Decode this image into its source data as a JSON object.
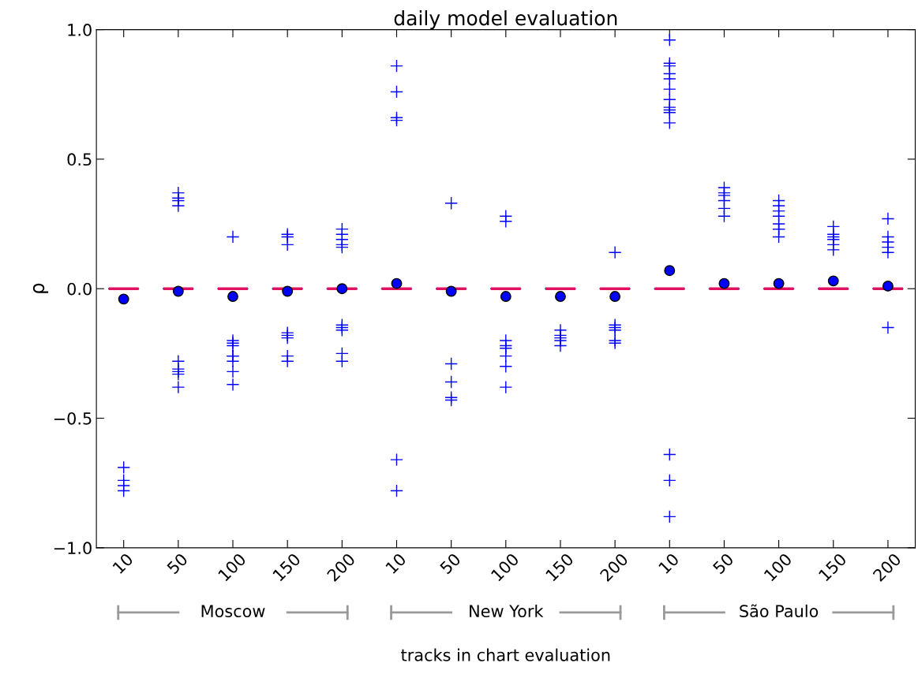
{
  "chart_data": {
    "type": "box",
    "title": "daily model evaluation",
    "xlabel": "tracks in chart evaluation",
    "ylabel": "ρ",
    "categories": [
      "10",
      "50",
      "100",
      "150",
      "200",
      "10",
      "50",
      "100",
      "150",
      "200",
      "10",
      "50",
      "100",
      "150",
      "200"
    ],
    "annotations": [
      "Moscow",
      "New York",
      "São Paulo"
    ],
    "ylim": [
      -1.0,
      1.0
    ],
    "yticks": [
      {
        "value": -1.0,
        "label": "−1.0"
      },
      {
        "value": -0.5,
        "label": "−0.5"
      },
      {
        "value": 0.0,
        "label": "0.0"
      },
      {
        "value": 0.5,
        "label": "0.5"
      },
      {
        "value": 1.0,
        "label": "1.0"
      }
    ],
    "grid": false,
    "boxes": [
      {
        "low": 0,
        "q1": 0,
        "median": 0,
        "q3": 0,
        "high": 0,
        "mean": -0.04,
        "outliers": [
          -0.69,
          -0.74,
          -0.76,
          -0.78
        ]
      },
      {
        "low": 0,
        "q1": 0,
        "median": 0,
        "q3": 0,
        "high": 0,
        "mean": -0.01,
        "outliers": [
          0.37,
          0.35,
          0.34,
          0.32,
          -0.28,
          -0.31,
          -0.32,
          -0.33,
          -0.38
        ]
      },
      {
        "low": 0,
        "q1": 0,
        "median": 0,
        "q3": 0,
        "high": 0,
        "mean": -0.03,
        "outliers": [
          0.2,
          -0.2,
          -0.21,
          -0.22,
          -0.26,
          -0.26,
          -0.28,
          -0.32,
          -0.37
        ]
      },
      {
        "low": 0,
        "q1": 0,
        "median": 0,
        "q3": 0,
        "high": 0,
        "mean": -0.01,
        "outliers": [
          0.21,
          0.2,
          0.17,
          -0.17,
          -0.18,
          -0.19,
          -0.26,
          -0.28
        ]
      },
      {
        "low": 0,
        "q1": 0,
        "median": 0,
        "q3": 0,
        "high": 0,
        "mean": 0.0,
        "outliers": [
          0.23,
          0.21,
          0.19,
          0.17,
          0.16,
          -0.14,
          -0.15,
          -0.16,
          -0.25,
          -0.28
        ]
      },
      {
        "low": 0,
        "q1": 0,
        "median": 0,
        "q3": 0,
        "high": 0,
        "mean": 0.02,
        "outliers": [
          0.86,
          0.76,
          0.66,
          0.65,
          -0.66,
          -0.78
        ]
      },
      {
        "low": 0,
        "q1": 0,
        "median": 0,
        "q3": 0,
        "high": 0,
        "mean": -0.01,
        "outliers": [
          0.33,
          -0.29,
          -0.36,
          -0.42,
          -0.43
        ]
      },
      {
        "low": 0,
        "q1": 0,
        "median": 0,
        "q3": 0,
        "high": 0,
        "mean": -0.03,
        "outliers": [
          0.28,
          0.26,
          -0.2,
          -0.22,
          -0.23,
          -0.26,
          -0.3,
          -0.38
        ]
      },
      {
        "low": 0,
        "q1": 0,
        "median": 0,
        "q3": 0,
        "high": 0,
        "mean": -0.03,
        "outliers": [
          -0.16,
          -0.18,
          -0.19,
          -0.2,
          -0.22
        ]
      },
      {
        "low": 0,
        "q1": 0,
        "median": 0,
        "q3": 0,
        "high": 0,
        "mean": -0.03,
        "outliers": [
          0.14,
          -0.14,
          -0.15,
          -0.16,
          -0.2,
          -0.21
        ]
      },
      {
        "low": 0,
        "q1": 0,
        "median": 0,
        "q3": 0,
        "high": 0,
        "mean": 0.07,
        "outliers": [
          0.96,
          0.87,
          0.86,
          0.83,
          0.81,
          0.77,
          0.73,
          0.7,
          0.69,
          0.68,
          0.64,
          -0.64,
          -0.74,
          -0.88
        ]
      },
      {
        "low": 0,
        "q1": 0,
        "median": 0,
        "q3": 0,
        "high": 0,
        "mean": 0.02,
        "outliers": [
          0.39,
          0.37,
          0.36,
          0.34,
          0.31,
          0.28
        ]
      },
      {
        "low": 0,
        "q1": 0,
        "median": 0,
        "q3": 0,
        "high": 0,
        "mean": 0.02,
        "outliers": [
          0.34,
          0.32,
          0.3,
          0.28,
          0.25,
          0.23,
          0.23,
          0.2
        ]
      },
      {
        "low": 0,
        "q1": 0,
        "median": 0,
        "q3": 0,
        "high": 0,
        "mean": 0.03,
        "outliers": [
          0.24,
          0.21,
          0.2,
          0.19,
          0.17,
          0.15
        ]
      },
      {
        "low": 0,
        "q1": 0,
        "median": 0,
        "q3": 0,
        "high": 0,
        "mean": 0.01,
        "outliers": [
          0.27,
          0.2,
          0.18,
          0.16,
          0.14,
          -0.15
        ]
      }
    ]
  }
}
